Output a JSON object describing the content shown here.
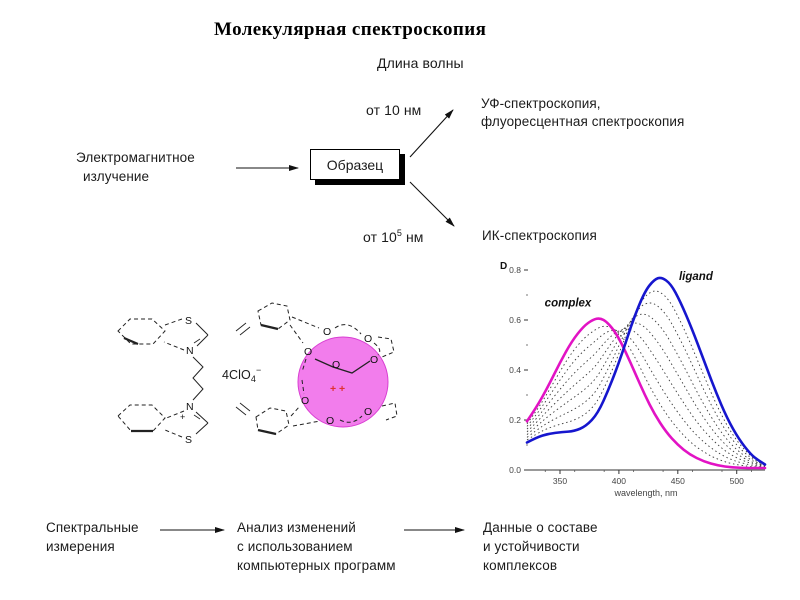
{
  "slide": {
    "title": "Молекулярная спектроскопия"
  },
  "diagram": {
    "wavelength_axis_label": "Длина волны",
    "source_line1": "Электромагнитное",
    "source_line2": "излучение",
    "sample_box_label": "Образец",
    "uv_range": "от 10 нм",
    "uv_label_line1": "УФ-спектроскопия,",
    "uv_label_line2": "флуоресцентная спектроскопия",
    "ir_range_base": "от 10",
    "ir_range_exponent": "5",
    "ir_range_unit": " нм",
    "ir_label": "ИК-спектроскопия"
  },
  "structure": {
    "counterion_prefix": "4ClO",
    "counterion_sub": "4",
    "counterion_sup": "−",
    "atom_s": "S",
    "atom_n": "N",
    "atom_o": "O",
    "n_charge": "+",
    "cation_charge": "+ +",
    "cation_fill": "#F27DEC",
    "cation_stroke": "#D93FD2",
    "charge_color": "#E03030"
  },
  "chart_data": {
    "type": "line",
    "title": "",
    "xlabel": "wavelength, nm",
    "ylabel": "D",
    "xlim": [
      322,
      524
    ],
    "ylim": [
      0.0,
      0.8
    ],
    "xticks": [
      350,
      400,
      450,
      500
    ],
    "yticks": [
      0.0,
      0.2,
      0.4,
      0.6,
      0.8
    ],
    "grid": false,
    "legend_position": "none",
    "annotations": [
      {
        "text": "complex",
        "x": 337,
        "y": 0.655
      },
      {
        "text": "ligand",
        "x": 451,
        "y": 0.76
      }
    ],
    "series": [
      {
        "name": "ligand",
        "color": "#1616CE",
        "points": [
          [
            322,
            0.11
          ],
          [
            330,
            0.13
          ],
          [
            340,
            0.145
          ],
          [
            352,
            0.152
          ],
          [
            362,
            0.155
          ],
          [
            372,
            0.175
          ],
          [
            382,
            0.225
          ],
          [
            392,
            0.33
          ],
          [
            402,
            0.455
          ],
          [
            412,
            0.6
          ],
          [
            422,
            0.715
          ],
          [
            430,
            0.762
          ],
          [
            436,
            0.772
          ],
          [
            444,
            0.745
          ],
          [
            452,
            0.675
          ],
          [
            462,
            0.565
          ],
          [
            472,
            0.44
          ],
          [
            482,
            0.315
          ],
          [
            492,
            0.205
          ],
          [
            502,
            0.122
          ],
          [
            512,
            0.062
          ],
          [
            518,
            0.04
          ],
          [
            524,
            0.022
          ]
        ]
      },
      {
        "name": "complex",
        "color": "#E213C4",
        "points": [
          [
            322,
            0.195
          ],
          [
            330,
            0.25
          ],
          [
            340,
            0.335
          ],
          [
            350,
            0.43
          ],
          [
            360,
            0.515
          ],
          [
            370,
            0.575
          ],
          [
            378,
            0.602
          ],
          [
            384,
            0.608
          ],
          [
            390,
            0.592
          ],
          [
            398,
            0.545
          ],
          [
            406,
            0.47
          ],
          [
            414,
            0.385
          ],
          [
            422,
            0.3
          ],
          [
            430,
            0.225
          ],
          [
            440,
            0.152
          ],
          [
            450,
            0.1
          ],
          [
            460,
            0.062
          ],
          [
            472,
            0.034
          ],
          [
            484,
            0.018
          ],
          [
            496,
            0.01
          ],
          [
            510,
            0.008
          ],
          [
            517,
            0.008
          ],
          [
            524,
            0.008
          ]
        ]
      }
    ],
    "intermediate_morph_fractions": [
      0.12,
      0.24,
      0.37,
      0.5,
      0.63,
      0.76,
      0.88
    ],
    "intermediate_style": {
      "color": "#3a3a3a",
      "dash": "1.5 2.8"
    }
  },
  "bottom_flow": {
    "step1_line1": "Спектральные",
    "step1_line2": "измерения",
    "step2_line1": "Анализ изменений",
    "step2_line2": "с использованием",
    "step2_line3": "компьютерных программ",
    "step3_line1": "Данные о составе",
    "step3_line2": "и устойчивости",
    "step3_line3": "комплексов"
  }
}
